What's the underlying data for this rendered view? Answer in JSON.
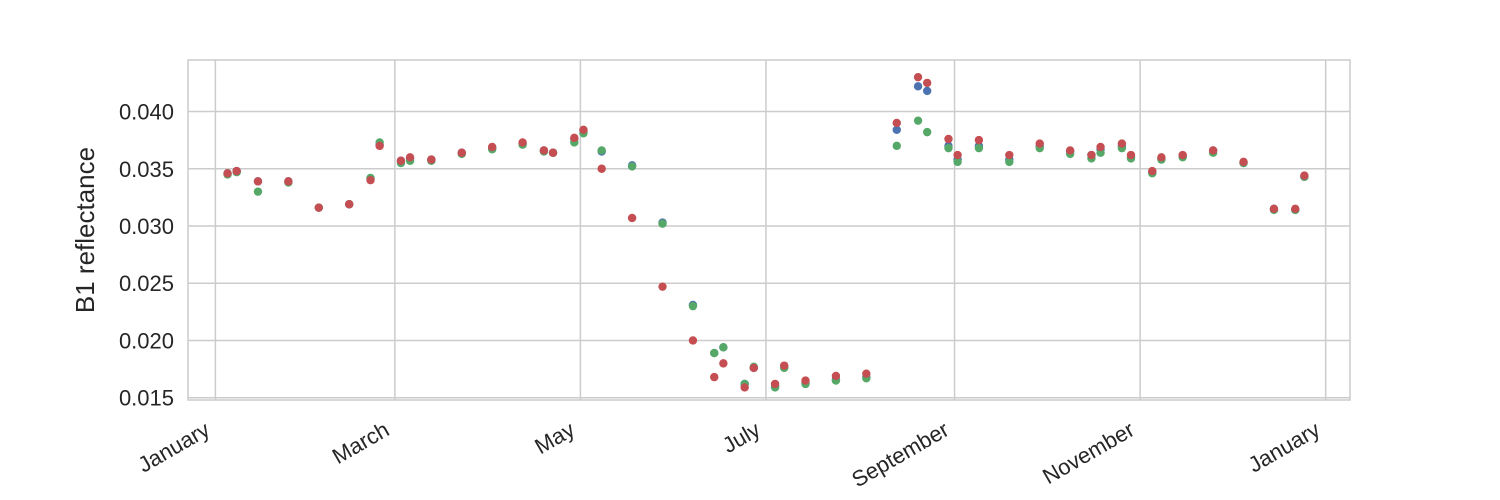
{
  "chart_data": {
    "type": "scatter",
    "title": "",
    "xlabel": "",
    "ylabel": "B1 reflectance",
    "xlim": [
      "2020-12-23",
      "2022-01-09"
    ],
    "ylim": [
      0.0148,
      0.0445
    ],
    "grid": true,
    "legend": "none",
    "x_ticks": [
      {
        "label": "January",
        "date": "2021-01-01"
      },
      {
        "label": "March",
        "date": "2021-03-01"
      },
      {
        "label": "May",
        "date": "2021-05-01"
      },
      {
        "label": "July",
        "date": "2021-07-01"
      },
      {
        "label": "September",
        "date": "2021-09-01"
      },
      {
        "label": "November",
        "date": "2021-11-01"
      },
      {
        "label": "January",
        "date": "2022-01-01"
      }
    ],
    "y_ticks": [
      {
        "label": "0.015",
        "value": 0.015
      },
      {
        "label": "0.020",
        "value": 0.02
      },
      {
        "label": "0.025",
        "value": 0.025
      },
      {
        "label": "0.030",
        "value": 0.03
      },
      {
        "label": "0.035",
        "value": 0.035
      },
      {
        "label": "0.040",
        "value": 0.04
      }
    ],
    "series": [
      {
        "color": "#4c72b0",
        "points": [
          [
            "2021-01-05",
            0.0346
          ],
          [
            "2021-01-08",
            0.0348
          ],
          [
            "2021-01-15",
            0.0339
          ],
          [
            "2021-01-25",
            0.0339
          ],
          [
            "2021-02-04",
            0.0316
          ],
          [
            "2021-02-14",
            0.0319
          ],
          [
            "2021-02-21",
            0.0341
          ],
          [
            "2021-02-24",
            0.0371
          ],
          [
            "2021-03-03",
            0.0357
          ],
          [
            "2021-03-06",
            0.0359
          ],
          [
            "2021-03-13",
            0.0358
          ],
          [
            "2021-03-23",
            0.0364
          ],
          [
            "2021-04-02",
            0.0368
          ],
          [
            "2021-04-12",
            0.0372
          ],
          [
            "2021-04-19",
            0.0366
          ],
          [
            "2021-04-22",
            0.0364
          ],
          [
            "2021-04-29",
            0.0376
          ],
          [
            "2021-05-02",
            0.0383
          ],
          [
            "2021-05-08",
            0.0365
          ],
          [
            "2021-05-18",
            0.0353
          ],
          [
            "2021-05-28",
            0.0303
          ],
          [
            "2021-06-07",
            0.0231
          ],
          [
            "2021-06-14",
            0.0189
          ],
          [
            "2021-06-17",
            0.0194
          ],
          [
            "2021-06-24",
            0.0162
          ],
          [
            "2021-06-27",
            0.0176
          ],
          [
            "2021-07-04",
            0.016
          ],
          [
            "2021-07-07",
            0.0177
          ],
          [
            "2021-07-14",
            0.0163
          ],
          [
            "2021-07-24",
            0.0166
          ],
          [
            "2021-08-03",
            0.0168
          ],
          [
            "2021-08-13",
            0.0384
          ],
          [
            "2021-08-20",
            0.0422
          ],
          [
            "2021-08-23",
            0.0418
          ],
          [
            "2021-08-30",
            0.037
          ],
          [
            "2021-09-02",
            0.0358
          ],
          [
            "2021-09-09",
            0.037
          ],
          [
            "2021-09-19",
            0.0358
          ],
          [
            "2021-09-29",
            0.037
          ],
          [
            "2021-10-09",
            0.0365
          ],
          [
            "2021-10-16",
            0.0362
          ],
          [
            "2021-10-19",
            0.0367
          ],
          [
            "2021-10-26",
            0.037
          ],
          [
            "2021-10-29",
            0.036
          ],
          [
            "2021-11-05",
            0.0347
          ],
          [
            "2021-11-08",
            0.0359
          ],
          [
            "2021-11-15",
            0.0361
          ],
          [
            "2021-11-25",
            0.0366
          ],
          [
            "2021-12-05",
            0.0355
          ],
          [
            "2021-12-15",
            0.0315
          ],
          [
            "2021-12-22",
            0.0314
          ],
          [
            "2021-12-25",
            0.0343
          ]
        ]
      },
      {
        "color": "#55a868",
        "points": [
          [
            "2021-01-05",
            0.0345
          ],
          [
            "2021-01-08",
            0.0347
          ],
          [
            "2021-01-15",
            0.033
          ],
          [
            "2021-01-25",
            0.0338
          ],
          [
            "2021-02-04",
            0.0316
          ],
          [
            "2021-02-14",
            0.0319
          ],
          [
            "2021-02-21",
            0.0342
          ],
          [
            "2021-02-24",
            0.0373
          ],
          [
            "2021-03-03",
            0.0355
          ],
          [
            "2021-03-06",
            0.0357
          ],
          [
            "2021-03-13",
            0.0357
          ],
          [
            "2021-03-23",
            0.0363
          ],
          [
            "2021-04-02",
            0.0367
          ],
          [
            "2021-04-12",
            0.0371
          ],
          [
            "2021-04-19",
            0.0365
          ],
          [
            "2021-04-22",
            0.0364
          ],
          [
            "2021-04-29",
            0.0373
          ],
          [
            "2021-05-02",
            0.0381
          ],
          [
            "2021-05-08",
            0.0366
          ],
          [
            "2021-05-18",
            0.0352
          ],
          [
            "2021-05-28",
            0.0302
          ],
          [
            "2021-06-07",
            0.023
          ],
          [
            "2021-06-14",
            0.0189
          ],
          [
            "2021-06-17",
            0.0194
          ],
          [
            "2021-06-24",
            0.0162
          ],
          [
            "2021-06-27",
            0.0177
          ],
          [
            "2021-07-04",
            0.0159
          ],
          [
            "2021-07-07",
            0.0176
          ],
          [
            "2021-07-14",
            0.0162
          ],
          [
            "2021-07-24",
            0.0165
          ],
          [
            "2021-08-03",
            0.0167
          ],
          [
            "2021-08-13",
            0.037
          ],
          [
            "2021-08-20",
            0.0392
          ],
          [
            "2021-08-23",
            0.0382
          ],
          [
            "2021-08-30",
            0.0368
          ],
          [
            "2021-09-02",
            0.0356
          ],
          [
            "2021-09-09",
            0.0368
          ],
          [
            "2021-09-19",
            0.0356
          ],
          [
            "2021-09-29",
            0.0368
          ],
          [
            "2021-10-09",
            0.0363
          ],
          [
            "2021-10-16",
            0.0359
          ],
          [
            "2021-10-19",
            0.0364
          ],
          [
            "2021-10-26",
            0.0368
          ],
          [
            "2021-10-29",
            0.0359
          ],
          [
            "2021-11-05",
            0.0346
          ],
          [
            "2021-11-08",
            0.0358
          ],
          [
            "2021-11-15",
            0.036
          ],
          [
            "2021-11-25",
            0.0364
          ],
          [
            "2021-12-05",
            0.0355
          ],
          [
            "2021-12-15",
            0.0314
          ],
          [
            "2021-12-22",
            0.0314
          ],
          [
            "2021-12-25",
            0.0343
          ]
        ]
      },
      {
        "color": "#c44e52",
        "points": [
          [
            "2021-01-05",
            0.0346
          ],
          [
            "2021-01-08",
            0.0348
          ],
          [
            "2021-01-15",
            0.0339
          ],
          [
            "2021-01-25",
            0.0339
          ],
          [
            "2021-02-04",
            0.0316
          ],
          [
            "2021-02-14",
            0.0319
          ],
          [
            "2021-02-21",
            0.034
          ],
          [
            "2021-02-24",
            0.037
          ],
          [
            "2021-03-03",
            0.0357
          ],
          [
            "2021-03-06",
            0.036
          ],
          [
            "2021-03-13",
            0.0358
          ],
          [
            "2021-03-23",
            0.0364
          ],
          [
            "2021-04-02",
            0.0369
          ],
          [
            "2021-04-12",
            0.0373
          ],
          [
            "2021-04-19",
            0.0366
          ],
          [
            "2021-04-22",
            0.0364
          ],
          [
            "2021-04-29",
            0.0377
          ],
          [
            "2021-05-02",
            0.0384
          ],
          [
            "2021-05-08",
            0.035
          ],
          [
            "2021-05-18",
            0.0307
          ],
          [
            "2021-05-28",
            0.0247
          ],
          [
            "2021-06-07",
            0.02
          ],
          [
            "2021-06-14",
            0.0168
          ],
          [
            "2021-06-17",
            0.018
          ],
          [
            "2021-06-24",
            0.0159
          ],
          [
            "2021-06-27",
            0.0176
          ],
          [
            "2021-07-04",
            0.0162
          ],
          [
            "2021-07-07",
            0.0178
          ],
          [
            "2021-07-14",
            0.0165
          ],
          [
            "2021-07-24",
            0.0169
          ],
          [
            "2021-08-03",
            0.0171
          ],
          [
            "2021-08-13",
            0.039
          ],
          [
            "2021-08-20",
            0.043
          ],
          [
            "2021-08-23",
            0.0425
          ],
          [
            "2021-08-30",
            0.0376
          ],
          [
            "2021-09-02",
            0.0362
          ],
          [
            "2021-09-09",
            0.0375
          ],
          [
            "2021-09-19",
            0.0362
          ],
          [
            "2021-09-29",
            0.0372
          ],
          [
            "2021-10-09",
            0.0366
          ],
          [
            "2021-10-16",
            0.0362
          ],
          [
            "2021-10-19",
            0.0369
          ],
          [
            "2021-10-26",
            0.0372
          ],
          [
            "2021-10-29",
            0.0362
          ],
          [
            "2021-11-05",
            0.0348
          ],
          [
            "2021-11-08",
            0.036
          ],
          [
            "2021-11-15",
            0.0362
          ],
          [
            "2021-11-25",
            0.0366
          ],
          [
            "2021-12-05",
            0.0356
          ],
          [
            "2021-12-15",
            0.0315
          ],
          [
            "2021-12-22",
            0.0315
          ],
          [
            "2021-12-25",
            0.0344
          ]
        ]
      }
    ]
  }
}
